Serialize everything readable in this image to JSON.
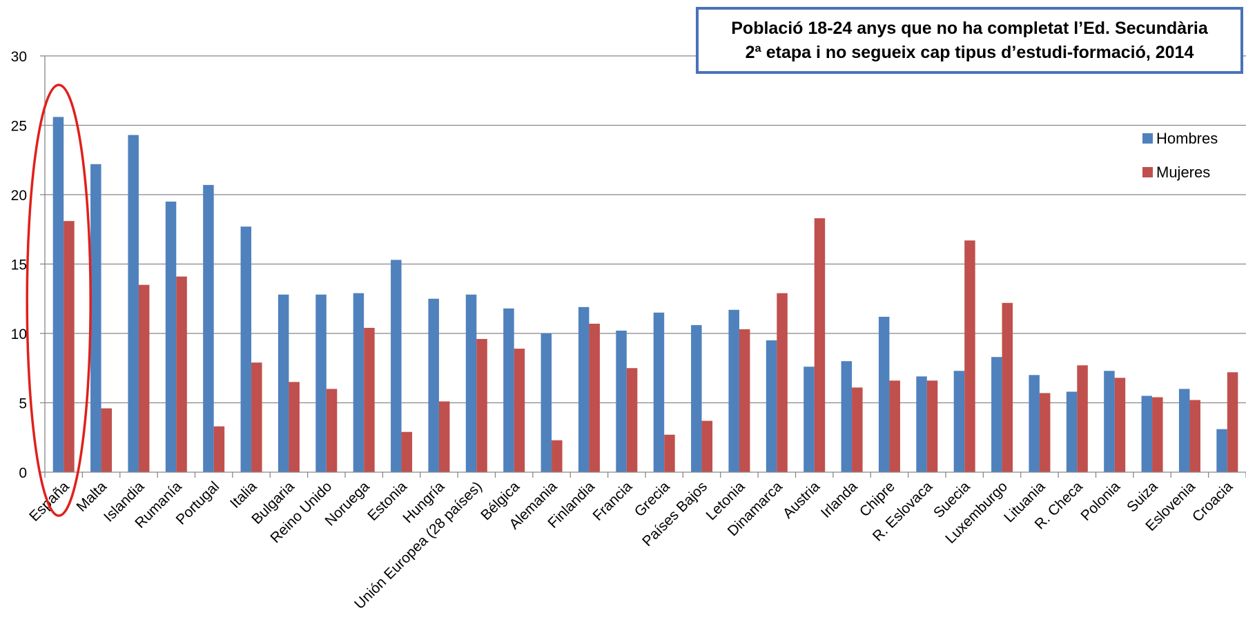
{
  "chart_data": {
    "type": "bar",
    "title_lines": [
      "Població 18-24 anys que no ha completat l’Ed. Secundària",
      "2ª etapa i no segueix cap tipus d’estudi-formació, 2014"
    ],
    "xlabel": "",
    "ylabel": "",
    "ylim": [
      0,
      30
    ],
    "yticks": [
      "0",
      "5",
      "10",
      "15",
      "20",
      "25",
      "30"
    ],
    "grid": true,
    "legend_position": "right",
    "categories": [
      "España",
      "Malta",
      "Islandia",
      "Rumanía",
      "Portugal",
      "Italia",
      "Bulgaria",
      "Reino Unido",
      "Noruega",
      "Estonia",
      "Hungría",
      "Unión Europea (28 países)",
      "Bélgica",
      "Alemania",
      "Finlandia",
      "Francia",
      "Grecia",
      "Países Bajos",
      "Letonia",
      "Dinamarca",
      "Austria",
      "Irlanda",
      "Chipre",
      "R. Eslovaca",
      "Suecia",
      "Luxemburgo",
      "Lituania",
      "R. Checa",
      "Polonia",
      "Suiza",
      "Eslovenia",
      "Croacia"
    ],
    "series": [
      {
        "name": "Hombres",
        "color": "#4f81bd",
        "values": [
          25.6,
          22.2,
          24.3,
          19.5,
          20.7,
          17.7,
          12.8,
          12.8,
          12.9,
          15.3,
          12.5,
          12.8,
          11.8,
          10.0,
          11.9,
          10.2,
          11.5,
          10.6,
          11.7,
          9.5,
          7.6,
          8.0,
          11.2,
          6.9,
          7.3,
          8.3,
          7.0,
          5.8,
          7.3,
          5.5,
          6.0,
          3.1
        ]
      },
      {
        "name": "Mujeres",
        "color": "#c0504d",
        "values": [
          18.1,
          4.6,
          13.5,
          14.1,
          3.3,
          7.9,
          6.5,
          6.0,
          10.4,
          2.9,
          5.1,
          9.6,
          8.9,
          2.3,
          10.7,
          7.5,
          2.7,
          3.7,
          10.3,
          12.9,
          18.3,
          6.1,
          6.6,
          6.6,
          16.7,
          12.2,
          5.7,
          7.7,
          6.8,
          5.4,
          5.2,
          7.2
        ]
      }
    ],
    "highlight": {
      "category": "España",
      "shape": "ellipse",
      "color": "#e0201b"
    }
  }
}
